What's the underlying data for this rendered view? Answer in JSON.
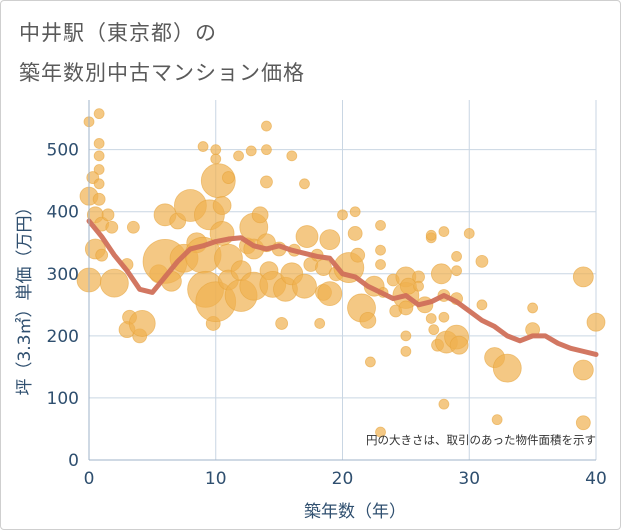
{
  "title_line1": "中井駅（東京都）の",
  "title_line2": "築年数別中古マンション価格",
  "chart_data": {
    "type": "scatter",
    "title": "中井駅（東京都）の築年数別中古マンション価格",
    "xlabel": "築年数（年）",
    "ylabel": "坪（3.3㎡）単価（万円）",
    "xlim": [
      0,
      40
    ],
    "ylim": [
      0,
      580
    ],
    "xticks": [
      0,
      10,
      20,
      30,
      40
    ],
    "yticks": [
      0,
      100,
      200,
      300,
      400,
      500
    ],
    "grid": true,
    "note": "円の大きさは、取引のあった物件面積を示す",
    "colors": {
      "bubble": "#f0b050",
      "line": "#d0705a"
    },
    "series": [
      {
        "type": "bubble",
        "points": [
          {
            "x": 0,
            "y": 545,
            "s": 5
          },
          {
            "x": 0.8,
            "y": 558,
            "s": 5
          },
          {
            "x": 0.8,
            "y": 510,
            "s": 5
          },
          {
            "x": 0.8,
            "y": 490,
            "s": 5
          },
          {
            "x": 0.8,
            "y": 468,
            "s": 5
          },
          {
            "x": 0.3,
            "y": 455,
            "s": 6
          },
          {
            "x": 0,
            "y": 425,
            "s": 9
          },
          {
            "x": 0.8,
            "y": 445,
            "s": 5
          },
          {
            "x": 0.8,
            "y": 420,
            "s": 6
          },
          {
            "x": 0.5,
            "y": 395,
            "s": 8
          },
          {
            "x": 1,
            "y": 380,
            "s": 7
          },
          {
            "x": 0.5,
            "y": 340,
            "s": 10
          },
          {
            "x": 1,
            "y": 330,
            "s": 6
          },
          {
            "x": 0,
            "y": 290,
            "s": 12
          },
          {
            "x": 1.5,
            "y": 395,
            "s": 6
          },
          {
            "x": 1.8,
            "y": 375,
            "s": 6
          },
          {
            "x": 2,
            "y": 285,
            "s": 14
          },
          {
            "x": 3,
            "y": 315,
            "s": 6
          },
          {
            "x": 3.2,
            "y": 230,
            "s": 7
          },
          {
            "x": 3,
            "y": 210,
            "s": 8
          },
          {
            "x": 4,
            "y": 200,
            "s": 7
          },
          {
            "x": 4.2,
            "y": 220,
            "s": 13
          },
          {
            "x": 3.5,
            "y": 375,
            "s": 6
          },
          {
            "x": 6,
            "y": 395,
            "s": 11
          },
          {
            "x": 5.5,
            "y": 300,
            "s": 9
          },
          {
            "x": 6,
            "y": 320,
            "s": 22
          },
          {
            "x": 6.5,
            "y": 288,
            "s": 10
          },
          {
            "x": 7,
            "y": 385,
            "s": 8
          },
          {
            "x": 7.5,
            "y": 325,
            "s": 14
          },
          {
            "x": 8,
            "y": 410,
            "s": 16
          },
          {
            "x": 8.5,
            "y": 350,
            "s": 10
          },
          {
            "x": 9,
            "y": 505,
            "s": 5
          },
          {
            "x": 9,
            "y": 330,
            "s": 18
          },
          {
            "x": 9.2,
            "y": 275,
            "s": 18
          },
          {
            "x": 9.5,
            "y": 395,
            "s": 15
          },
          {
            "x": 9.8,
            "y": 220,
            "s": 7
          },
          {
            "x": 10,
            "y": 255,
            "s": 20
          },
          {
            "x": 10,
            "y": 500,
            "s": 5
          },
          {
            "x": 10,
            "y": 485,
            "s": 5
          },
          {
            "x": 10.2,
            "y": 450,
            "s": 17
          },
          {
            "x": 10.5,
            "y": 410,
            "s": 9
          },
          {
            "x": 10.5,
            "y": 365,
            "s": 12
          },
          {
            "x": 11,
            "y": 455,
            "s": 6
          },
          {
            "x": 11,
            "y": 325,
            "s": 14
          },
          {
            "x": 11,
            "y": 290,
            "s": 10
          },
          {
            "x": 11.8,
            "y": 490,
            "s": 5
          },
          {
            "x": 12,
            "y": 265,
            "s": 16
          },
          {
            "x": 12,
            "y": 305,
            "s": 10
          },
          {
            "x": 12.5,
            "y": 345,
            "s": 8
          },
          {
            "x": 12.8,
            "y": 498,
            "s": 5
          },
          {
            "x": 13,
            "y": 375,
            "s": 14
          },
          {
            "x": 13,
            "y": 280,
            "s": 14
          },
          {
            "x": 13,
            "y": 340,
            "s": 10
          },
          {
            "x": 13.5,
            "y": 395,
            "s": 8
          },
          {
            "x": 14,
            "y": 538,
            "s": 5
          },
          {
            "x": 14,
            "y": 500,
            "s": 5
          },
          {
            "x": 14,
            "y": 448,
            "s": 6
          },
          {
            "x": 14,
            "y": 350,
            "s": 9
          },
          {
            "x": 14.2,
            "y": 305,
            "s": 9
          },
          {
            "x": 14.5,
            "y": 283,
            "s": 13
          },
          {
            "x": 15,
            "y": 340,
            "s": 7
          },
          {
            "x": 15.2,
            "y": 220,
            "s": 6
          },
          {
            "x": 15.5,
            "y": 275,
            "s": 12
          },
          {
            "x": 16,
            "y": 490,
            "s": 5
          },
          {
            "x": 16,
            "y": 300,
            "s": 11
          },
          {
            "x": 16.2,
            "y": 338,
            "s": 6
          },
          {
            "x": 17,
            "y": 445,
            "s": 5
          },
          {
            "x": 17,
            "y": 280,
            "s": 12
          },
          {
            "x": 17.2,
            "y": 360,
            "s": 11
          },
          {
            "x": 17.5,
            "y": 315,
            "s": 7
          },
          {
            "x": 18,
            "y": 330,
            "s": 6
          },
          {
            "x": 18.2,
            "y": 220,
            "s": 5
          },
          {
            "x": 18.5,
            "y": 310,
            "s": 8
          },
          {
            "x": 18.5,
            "y": 270,
            "s": 8
          },
          {
            "x": 19,
            "y": 355,
            "s": 10
          },
          {
            "x": 19,
            "y": 268,
            "s": 12
          },
          {
            "x": 19.5,
            "y": 300,
            "s": 7
          },
          {
            "x": 20,
            "y": 395,
            "s": 5
          },
          {
            "x": 20.5,
            "y": 310,
            "s": 15
          },
          {
            "x": 21,
            "y": 400,
            "s": 5
          },
          {
            "x": 21,
            "y": 365,
            "s": 7
          },
          {
            "x": 21.2,
            "y": 330,
            "s": 7
          },
          {
            "x": 21.5,
            "y": 245,
            "s": 14
          },
          {
            "x": 22,
            "y": 225,
            "s": 8
          },
          {
            "x": 22.2,
            "y": 158,
            "s": 5
          },
          {
            "x": 22.5,
            "y": 280,
            "s": 10
          },
          {
            "x": 23,
            "y": 378,
            "s": 5
          },
          {
            "x": 23,
            "y": 338,
            "s": 5
          },
          {
            "x": 23,
            "y": 315,
            "s": 5
          },
          {
            "x": 23.2,
            "y": 270,
            "s": 5
          },
          {
            "x": 23,
            "y": 45,
            "s": 5
          },
          {
            "x": 24,
            "y": 290,
            "s": 6
          },
          {
            "x": 24.2,
            "y": 240,
            "s": 6
          },
          {
            "x": 25,
            "y": 295,
            "s": 10
          },
          {
            "x": 25,
            "y": 265,
            "s": 13
          },
          {
            "x": 25,
            "y": 245,
            "s": 7
          },
          {
            "x": 25,
            "y": 200,
            "s": 5
          },
          {
            "x": 25,
            "y": 175,
            "s": 5
          },
          {
            "x": 25.2,
            "y": 280,
            "s": 8
          },
          {
            "x": 26,
            "y": 295,
            "s": 6
          },
          {
            "x": 26,
            "y": 280,
            "s": 5
          },
          {
            "x": 26.5,
            "y": 250,
            "s": 8
          },
          {
            "x": 27,
            "y": 358,
            "s": 5
          },
          {
            "x": 27,
            "y": 362,
            "s": 5
          },
          {
            "x": 27,
            "y": 228,
            "s": 5
          },
          {
            "x": 27.2,
            "y": 210,
            "s": 5
          },
          {
            "x": 27.5,
            "y": 185,
            "s": 6
          },
          {
            "x": 27.8,
            "y": 300,
            "s": 10
          },
          {
            "x": 28,
            "y": 265,
            "s": 6
          },
          {
            "x": 28,
            "y": 230,
            "s": 5
          },
          {
            "x": 28,
            "y": 90,
            "s": 5
          },
          {
            "x": 28,
            "y": 368,
            "s": 5
          },
          {
            "x": 28.2,
            "y": 190,
            "s": 11
          },
          {
            "x": 29,
            "y": 305,
            "s": 5
          },
          {
            "x": 29,
            "y": 328,
            "s": 5
          },
          {
            "x": 29,
            "y": 260,
            "s": 6
          },
          {
            "x": 29,
            "y": 198,
            "s": 12
          },
          {
            "x": 29.2,
            "y": 185,
            "s": 9
          },
          {
            "x": 30,
            "y": 365,
            "s": 5
          },
          {
            "x": 31,
            "y": 320,
            "s": 6
          },
          {
            "x": 31,
            "y": 250,
            "s": 5
          },
          {
            "x": 32,
            "y": 165,
            "s": 10
          },
          {
            "x": 32.2,
            "y": 65,
            "s": 5
          },
          {
            "x": 33,
            "y": 148,
            "s": 14
          },
          {
            "x": 35,
            "y": 245,
            "s": 5
          },
          {
            "x": 35,
            "y": 210,
            "s": 7
          },
          {
            "x": 39,
            "y": 295,
            "s": 10
          },
          {
            "x": 39,
            "y": 145,
            "s": 10
          },
          {
            "x": 39,
            "y": 60,
            "s": 7
          },
          {
            "x": 40,
            "y": 222,
            "s": 9
          }
        ]
      },
      {
        "type": "line",
        "x": [
          0,
          1,
          2,
          3,
          4,
          5,
          6,
          7,
          8,
          9,
          10,
          11,
          12,
          13,
          14,
          15,
          16,
          17,
          18,
          19,
          20,
          21,
          22,
          23,
          24,
          25,
          26,
          27,
          28,
          29,
          30,
          31,
          32,
          33,
          34,
          35,
          36,
          37,
          38,
          39,
          40
        ],
        "y": [
          385,
          360,
          330,
          305,
          275,
          270,
          295,
          320,
          340,
          345,
          352,
          356,
          358,
          345,
          340,
          345,
          338,
          333,
          328,
          325,
          300,
          295,
          280,
          270,
          260,
          265,
          250,
          255,
          265,
          255,
          240,
          225,
          215,
          200,
          192,
          200,
          200,
          188,
          180,
          175,
          170
        ]
      }
    ]
  }
}
